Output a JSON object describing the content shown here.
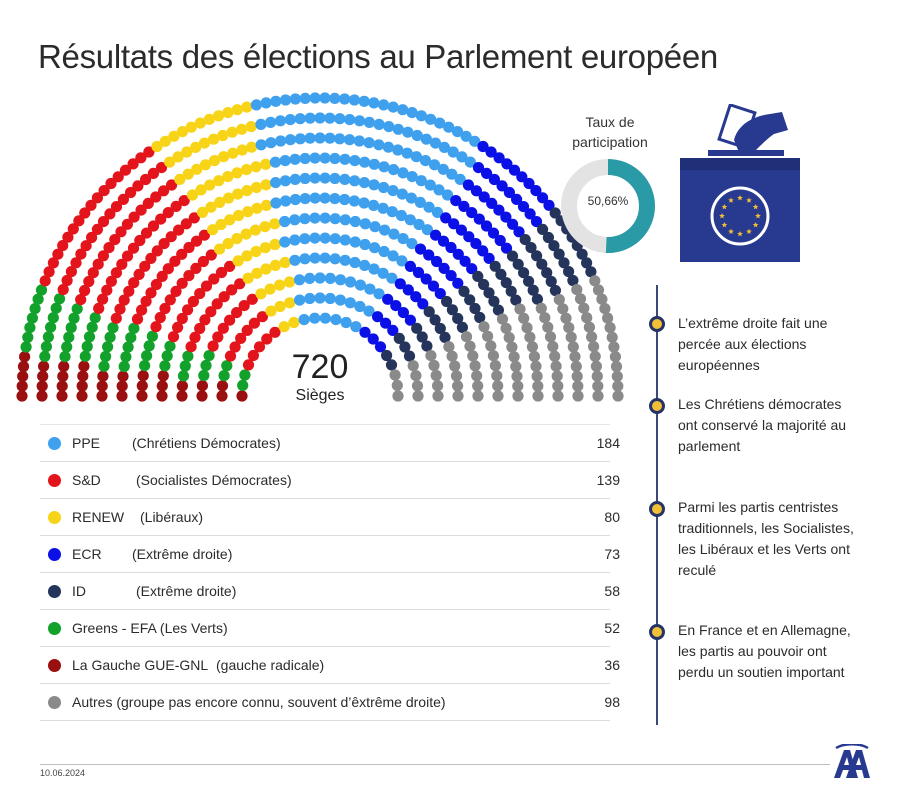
{
  "title": "Résultats des élections au Parlement européen",
  "chart_data": {
    "type": "hemicycle",
    "total_seats": 720,
    "seats_label": "Sièges",
    "series": [
      {
        "name": "PPE",
        "description": "(Chrétiens Démocrates)",
        "value": 184,
        "color": "#3fa0ee"
      },
      {
        "name": "S&D",
        "description": "(Socialistes Démocrates)",
        "value": 139,
        "color": "#e3141b"
      },
      {
        "name": "RENEW",
        "description": "(Libéraux)",
        "value": 80,
        "color": "#f7d417"
      },
      {
        "name": "ECR",
        "description": "(Extrême droite)",
        "value": 73,
        "color": "#0b10e6"
      },
      {
        "name": "ID",
        "description": "(Extrême droite)",
        "value": 58,
        "color": "#25345a"
      },
      {
        "name": "Greens - EFA (Les Verts)",
        "description": "",
        "value": 52,
        "color": "#12a12a"
      },
      {
        "name": "La Gauche  GUE-GNL",
        "description": "(gauche radicale)",
        "value": 36,
        "color": "#9a0f10"
      },
      {
        "name": "Autres (groupe pas encore connu, souvent d’êxtrême droite)",
        "description": "",
        "value": 98,
        "color": "#8a8a8a"
      }
    ],
    "seat_order": [
      "La Gauche  GUE-GNL",
      "Greens - EFA (Les Verts)",
      "S&D",
      "RENEW",
      "PPE",
      "ECR",
      "ID",
      "Autres (groupe pas encore connu, souvent d’êxtrême droite)"
    ]
  },
  "turnout": {
    "title_line1": "Taux de",
    "title_line2": "participation",
    "value_label": "50,66%",
    "value": 50.66,
    "color_filled": "#2a9aa6",
    "color_empty": "#e3e3e3"
  },
  "key_points": [
    "L’extrême droite fait une percée aux élections européennes",
    "Les Chrétiens démocrates ont conservé la majorité au parlement",
    "Parmi les partis centristes traditionnels, les Socialistes, les Libéraux et les Verts ont reculé",
    "En France et en Allemagne, les partis au pouvoir ont perdu un soutien important"
  ],
  "colors": {
    "accent": "#263366",
    "bullet": "#f2c037",
    "ballot_box": "#273a8f"
  },
  "icons": [
    "ballot-box-icon",
    "eu-flag-icon",
    "aa-logo-icon"
  ],
  "footer": {
    "date": "10.06.2024"
  }
}
